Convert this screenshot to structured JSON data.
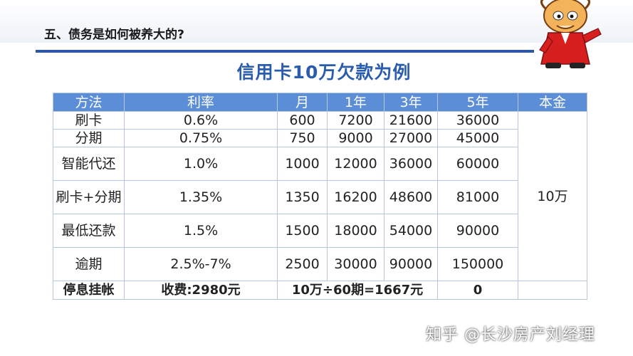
{
  "heading": "五、债务是如何被养大的?",
  "title": "信用卡10万欠款为例",
  "table": {
    "headers": [
      "方法",
      "利率",
      "月",
      "1年",
      "3年",
      "5年",
      "本金"
    ],
    "rows": [
      {
        "method": "刷卡",
        "rate": "0.6%",
        "month": "600",
        "y1": "7200",
        "y3": "21600",
        "y5": "36000"
      },
      {
        "method": "分期",
        "rate": "0.75%",
        "month": "750",
        "y1": "9000",
        "y3": "27000",
        "y5": "45000"
      },
      {
        "method": "智能代还",
        "rate": "1.0%",
        "month": "1000",
        "y1": "12000",
        "y3": "36000",
        "y5": "60000"
      },
      {
        "method": "刷卡+分期",
        "rate": "1.35%",
        "month": "1350",
        "y1": "16200",
        "y3": "48600",
        "y5": "81000"
      },
      {
        "method": "最低还款",
        "rate": "1.5%",
        "month": "1500",
        "y1": "18000",
        "y3": "54000",
        "y5": "90000"
      },
      {
        "method": "逾期",
        "rate": "2.5%-7%",
        "month": "2500",
        "y1": "30000",
        "y3": "90000",
        "y5": "150000"
      }
    ],
    "principal": "10万",
    "footer": {
      "method": "停息挂帐",
      "fee": "收费:2980元",
      "installment": "10万÷60期=1667元",
      "y5": "0"
    }
  },
  "watermark": "知乎 @长沙房产刘经理",
  "colors": {
    "accent": "#2f56a8",
    "header_bg": "#5b8ed6",
    "title": "#2a5cad"
  }
}
